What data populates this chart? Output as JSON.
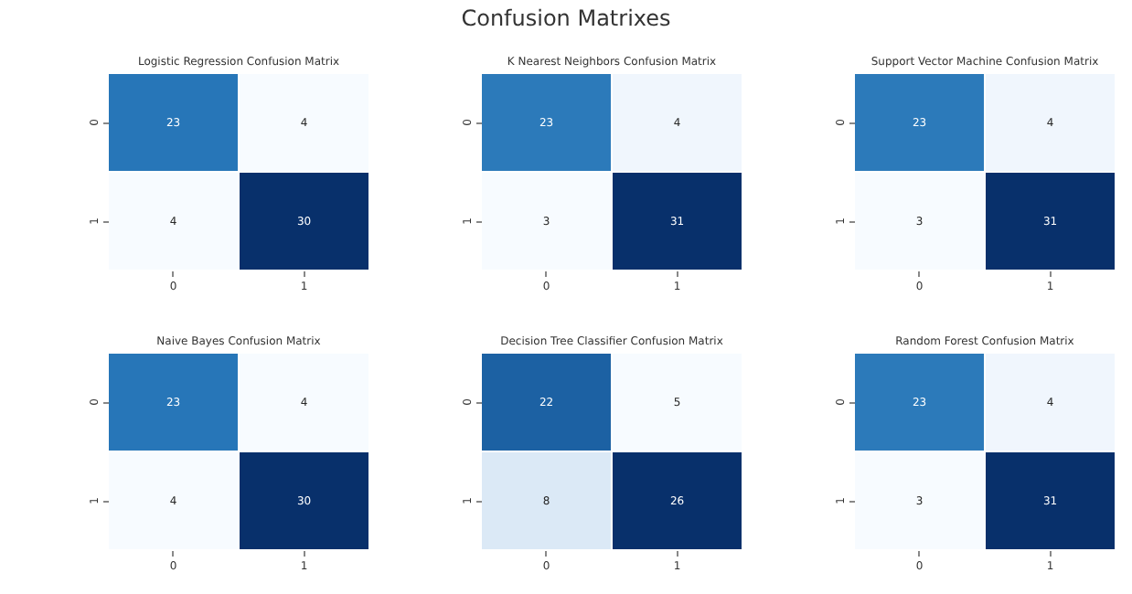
{
  "chart_data": [
    {
      "type": "other",
      "title": "Confusion Matrixes"
    },
    {
      "type": "heatmap",
      "title": "Logistic Regression Confusion Matrix",
      "categories": [
        "0",
        "1"
      ],
      "y_categories": [
        "0",
        "1"
      ],
      "cells": [
        [
          23,
          4
        ],
        [
          4,
          30
        ]
      ],
      "data_labels": true
    },
    {
      "type": "heatmap",
      "title": "K Nearest Neighbors Confusion Matrix",
      "categories": [
        "0",
        "1"
      ],
      "y_categories": [
        "0",
        "1"
      ],
      "cells": [
        [
          23,
          4
        ],
        [
          3,
          31
        ]
      ],
      "data_labels": true
    },
    {
      "type": "heatmap",
      "title": "Support Vector Machine Confusion Matrix",
      "categories": [
        "0",
        "1"
      ],
      "y_categories": [
        "0",
        "1"
      ],
      "cells": [
        [
          23,
          4
        ],
        [
          3,
          31
        ]
      ],
      "data_labels": true
    },
    {
      "type": "heatmap",
      "title": "Naive Bayes Confusion Matrix",
      "categories": [
        "0",
        "1"
      ],
      "y_categories": [
        "0",
        "1"
      ],
      "cells": [
        [
          23,
          4
        ],
        [
          4,
          30
        ]
      ],
      "data_labels": true
    },
    {
      "type": "heatmap",
      "title": "Decision Tree Classifier Confusion Matrix",
      "categories": [
        "0",
        "1"
      ],
      "y_categories": [
        "0",
        "1"
      ],
      "cells": [
        [
          22,
          5
        ],
        [
          8,
          26
        ]
      ],
      "data_labels": true
    },
    {
      "type": "heatmap",
      "title": "Random Forest Confusion Matrix",
      "categories": [
        "0",
        "1"
      ],
      "y_categories": [
        "0",
        "1"
      ],
      "cells": [
        [
          23,
          4
        ],
        [
          3,
          31
        ]
      ],
      "data_labels": true
    }
  ]
}
